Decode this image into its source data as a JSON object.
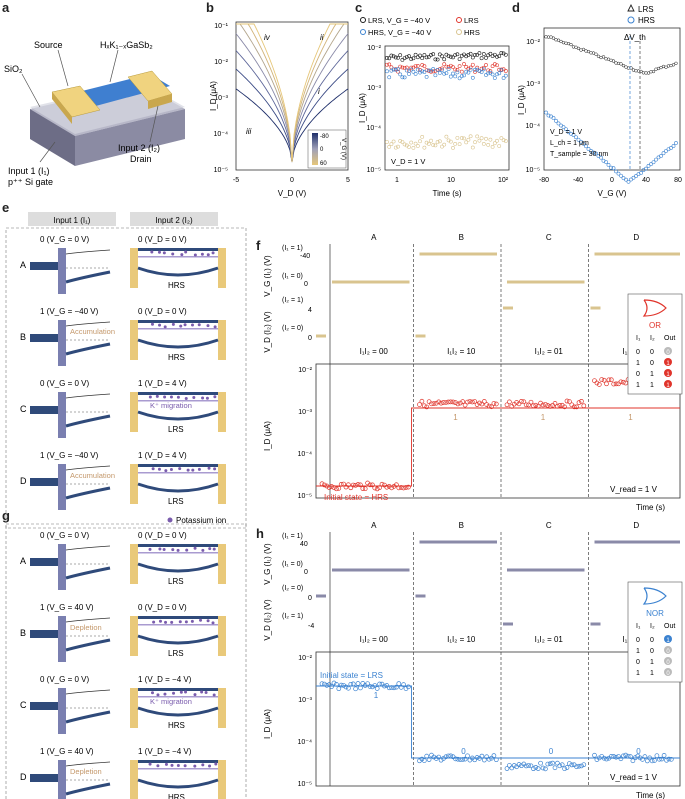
{
  "panels": {
    "a": {
      "label": "a",
      "source": "Source",
      "channel": "HₓK₁₋ₓGaSb₂",
      "sio2": "SiO₂",
      "input1": "Input 1 (I₁)",
      "gate": "p⁺⁺ Si gate",
      "input2": "Input 2 (I₂)",
      "drain": "Drain"
    },
    "b": {
      "label": "b",
      "xlabel": "V_D (V)",
      "ylabel": "I_D (μA)",
      "xticks": [
        "-5",
        "0",
        "5"
      ],
      "yticks": [
        "10⁻¹",
        "10⁻²",
        "10⁻³",
        "10⁻⁴",
        "10⁻⁵"
      ],
      "arrows": [
        "i",
        "ii",
        "iii",
        "iv"
      ],
      "colorbar_title": "V_G (V)",
      "colorbar_ticks": [
        "-80",
        "0",
        "60"
      ]
    },
    "c": {
      "label": "c",
      "legend": [
        "LRS, V_G = −40 V",
        "LRS",
        "HRS, V_G = −40 V",
        "HRS"
      ],
      "xlabel": "Time (s)",
      "ylabel": "I_D (μA)",
      "xticks": [
        "1",
        "10",
        "10²"
      ],
      "yticks": [
        "10⁻²",
        "10⁻³",
        "10⁻⁴",
        "10⁻⁵"
      ],
      "annotation": "V_D = 1 V"
    },
    "d": {
      "label": "d",
      "legend": [
        "LRS",
        "HRS"
      ],
      "xlabel": "V_G (V)",
      "ylabel": "I_D (μA)",
      "xticks": [
        "-80",
        "-40",
        "0",
        "40",
        "80"
      ],
      "yticks": [
        "10⁻²",
        "10⁻³",
        "10⁻⁴",
        "10⁻⁵"
      ],
      "delta": "ΔV_th",
      "params": [
        "V_D = 1 V",
        "L_ch = 1 μm",
        "T_sample = 30 nm"
      ]
    },
    "e": {
      "label": "e",
      "col1": "Input 1 (I₁)",
      "col2": "Input 2 (I₂)",
      "rows": [
        {
          "letter": "A",
          "in1": "0 (V_G = 0 V)",
          "in2": "0 (V_D = 0 V)",
          "state": "HRS",
          "note": ""
        },
        {
          "letter": "B",
          "in1": "1 (V_G = −40 V)",
          "in2": "0 (V_D = 0 V)",
          "state": "HRS",
          "note": "Accumulation"
        },
        {
          "letter": "C",
          "in1": "0 (V_G = 0 V)",
          "in2": "1 (V_D = 4 V)",
          "state": "LRS",
          "note": "K⁺ migration"
        },
        {
          "letter": "D",
          "in1": "1 (V_G = −40 V)",
          "in2": "1 (V_D = 4 V)",
          "state": "LRS",
          "note": "Accumulation"
        }
      ],
      "gate": "Gate",
      "source": "Source",
      "drain": "Drain",
      "phi": "Φ_B"
    },
    "g": {
      "label": "g",
      "legend": "Potassium ion",
      "rows": [
        {
          "letter": "A",
          "in1": "0 (V_G = 0 V)",
          "in2": "0 (V_D = 0 V)",
          "state": "LRS",
          "note": ""
        },
        {
          "letter": "B",
          "in1": "1 (V_G = 40 V)",
          "in2": "0 (V_D = 0 V)",
          "state": "LRS",
          "note": "Depletion"
        },
        {
          "letter": "C",
          "in1": "0 (V_G = 0 V)",
          "in2": "1 (V_D = −4 V)",
          "state": "HRS",
          "note": "K⁺ migration"
        },
        {
          "letter": "D",
          "in1": "1 (V_G = 40 V)",
          "in2": "1 (V_D = −4 V)",
          "state": "HRS",
          "note": "Depletion"
        }
      ]
    },
    "f": {
      "label": "f",
      "segments": [
        "A",
        "B",
        "C",
        "D"
      ],
      "vg_label": "V_G (I₁) (V)",
      "vd_label": "V_D (I₂) (V)",
      "vg_ticks": [
        "-40",
        "0"
      ],
      "vd_ticks": [
        "4",
        "0"
      ],
      "state_labels": [
        "(I₁ = 1)",
        "(I₁ = 0)",
        "(I₂ = 1)",
        "(I₂ = 0)"
      ],
      "codes": [
        "I₁I₂ = 00",
        "I₁I₂ = 10",
        "I₁I₂ = 01",
        "I₁I₂ = 11"
      ],
      "id_label": "I_D (μA)",
      "id_ticks": [
        "10⁻²",
        "10⁻³",
        "10⁻⁴",
        "10⁻⁵"
      ],
      "initial": "Initial state = HRS",
      "outs": [
        "1",
        "1",
        "1"
      ],
      "vread": "V_read = 1 V",
      "time": "Time (s)",
      "gate": "OR",
      "table_head": [
        "I₁",
        "I₂",
        "Out"
      ],
      "table": [
        [
          "0",
          "0",
          "0"
        ],
        [
          "1",
          "0",
          "1"
        ],
        [
          "0",
          "1",
          "1"
        ],
        [
          "1",
          "1",
          "1"
        ]
      ],
      "accent": "#e0342b"
    },
    "h": {
      "label": "h",
      "segments": [
        "A",
        "B",
        "C",
        "D"
      ],
      "vg_label": "V_G (I₁) (V)",
      "vd_label": "V_D (I₂) (V)",
      "vg_ticks": [
        "40",
        "0"
      ],
      "vd_ticks": [
        "0",
        "-4"
      ],
      "state_labels": [
        "(I₁ = 1)",
        "(I₁ = 0)",
        "(I₂ = 0)",
        "(I₂ = 1)"
      ],
      "codes": [
        "I₁I₂ = 00",
        "I₁I₂ = 10",
        "I₁I₂ = 01",
        "I₁I₂ = 11"
      ],
      "id_label": "I_D (μA)",
      "id_ticks": [
        "10⁻²",
        "10⁻³",
        "10⁻⁴",
        "10⁻⁵"
      ],
      "initial": "Initial state = LRS",
      "outs": [
        "1",
        "0",
        "0",
        "0"
      ],
      "vread": "V_read = 1 V",
      "time": "Time (s)",
      "gate": "NOR",
      "table_head": [
        "I₁",
        "I₂",
        "Out"
      ],
      "table": [
        [
          "0",
          "0",
          "1"
        ],
        [
          "1",
          "0",
          "0"
        ],
        [
          "0",
          "1",
          "0"
        ],
        [
          "1",
          "1",
          "0"
        ]
      ],
      "accent": "#3b82d0"
    }
  },
  "colors": {
    "lrs": "#1a1a1a",
    "lrs_red": "#e0342b",
    "hrs_blue": "#3b82d0",
    "hrs_tan": "#d9c48f",
    "band": "#2f4a7a",
    "gate": "#7a7fb0",
    "contact": "#e9c97a"
  }
}
